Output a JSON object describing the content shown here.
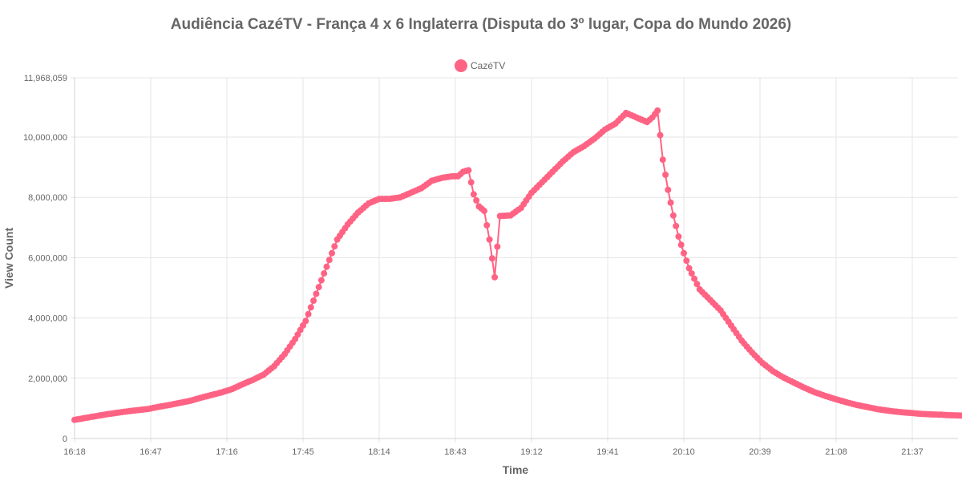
{
  "chart_data": {
    "type": "line",
    "title": "Audiência CazéTV - França 4 x 6 Inglaterra (Disputa do 3º lugar, Copa do Mundo 2026)",
    "xlabel": "Time",
    "ylabel": "View Count",
    "ylim": [
      0,
      11968059
    ],
    "xlim": [
      "16:18",
      "22:01"
    ],
    "y_ticks": [
      {
        "value": 0,
        "label": "0"
      },
      {
        "value": 2000000,
        "label": "2,000,000"
      },
      {
        "value": 4000000,
        "label": "4,000,000"
      },
      {
        "value": 6000000,
        "label": "6,000,000"
      },
      {
        "value": 8000000,
        "label": "8,000,000"
      },
      {
        "value": 10000000,
        "label": "10,000,000"
      },
      {
        "value": 11968059,
        "label": "11,968,059"
      }
    ],
    "x_ticks": [
      "16:18",
      "16:47",
      "17:16",
      "17:45",
      "18:14",
      "18:43",
      "19:12",
      "19:41",
      "20:10",
      "20:39",
      "21:08",
      "21:37"
    ],
    "grid": true,
    "legend_position": "top",
    "series": [
      {
        "name": "CazéTV",
        "color": "#ff6384",
        "x": [
          "16:18",
          "16:22",
          "16:26",
          "16:30",
          "16:34",
          "16:38",
          "16:42",
          "16:46",
          "16:50",
          "16:54",
          "16:58",
          "17:02",
          "17:06",
          "17:10",
          "17:14",
          "17:18",
          "17:22",
          "17:26",
          "17:30",
          "17:34",
          "17:38",
          "17:42",
          "17:46",
          "17:50",
          "17:54",
          "17:58",
          "18:02",
          "18:06",
          "18:10",
          "18:14",
          "18:18",
          "18:22",
          "18:26",
          "18:30",
          "18:34",
          "18:38",
          "18:42",
          "18:44",
          "18:46",
          "18:48",
          "18:50",
          "18:52",
          "18:54",
          "18:56",
          "18:58",
          "19:00",
          "19:04",
          "19:08",
          "19:12",
          "19:16",
          "19:20",
          "19:24",
          "19:28",
          "19:32",
          "19:36",
          "19:40",
          "19:44",
          "19:48",
          "19:52",
          "19:56",
          "19:58",
          "20:00",
          "20:02",
          "20:04",
          "20:06",
          "20:08",
          "20:10",
          "20:12",
          "20:16",
          "20:20",
          "20:24",
          "20:28",
          "20:32",
          "20:36",
          "20:40",
          "20:44",
          "20:48",
          "20:52",
          "20:56",
          "21:00",
          "21:04",
          "21:08",
          "21:12",
          "21:16",
          "21:20",
          "21:24",
          "21:28",
          "21:32",
          "21:36",
          "21:40",
          "21:44",
          "21:48",
          "21:52",
          "21:56",
          "22:00"
        ],
        "values": [
          620000,
          680000,
          740000,
          800000,
          850000,
          900000,
          940000,
          980000,
          1050000,
          1110000,
          1180000,
          1250000,
          1350000,
          1440000,
          1530000,
          1640000,
          1800000,
          1950000,
          2120000,
          2400000,
          2800000,
          3300000,
          3900000,
          4800000,
          5700000,
          6600000,
          7100000,
          7500000,
          7800000,
          7950000,
          7950000,
          8000000,
          8150000,
          8300000,
          8550000,
          8650000,
          8700000,
          8700000,
          8850000,
          8900000,
          8100000,
          7700000,
          7550000,
          6600000,
          5350000,
          7380000,
          7400000,
          7650000,
          8150000,
          8500000,
          8850000,
          9200000,
          9500000,
          9700000,
          9950000,
          10250000,
          10450000,
          10800000,
          10650000,
          10500000,
          10650000,
          10880000,
          9250000,
          8250000,
          7400000,
          6700000,
          6150000,
          5650000,
          4950000,
          4600000,
          4250000,
          3750000,
          3250000,
          2850000,
          2500000,
          2230000,
          2020000,
          1850000,
          1680000,
          1530000,
          1410000,
          1300000,
          1200000,
          1110000,
          1040000,
          970000,
          920000,
          880000,
          850000,
          820000,
          800000,
          790000,
          770000,
          760000,
          740000
        ]
      }
    ]
  }
}
